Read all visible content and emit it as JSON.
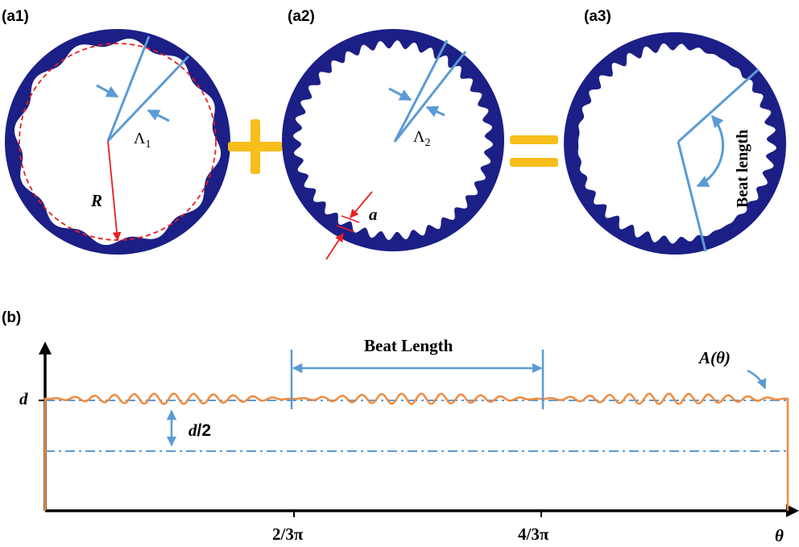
{
  "panels": {
    "a1": {
      "label": "(a1)",
      "period_symbol": "Λ",
      "period_subscript": "1",
      "radius_label": "R"
    },
    "a2": {
      "label": "(a2)",
      "period_symbol": "Λ",
      "period_subscript": "2",
      "amplitude_label": "a"
    },
    "a3": {
      "label": "(a3)",
      "beat_label": "Beat length"
    },
    "b": {
      "label": "(b)",
      "beat_label": "Beat Length",
      "curve_label": "A(θ)",
      "d_label": "d",
      "half_label_italic": "d",
      "half_label_rest": "/2",
      "x_ticks": [
        "2/3π",
        "4/3π"
      ],
      "x_axis_label": "θ"
    }
  },
  "operators": {
    "plus": "+",
    "equals": "="
  },
  "colors": {
    "ring": "#1c1f86",
    "light_blue": "#5b9bd5",
    "orange": "#f18a3f",
    "gold": "#f7be1c",
    "red": "#e81f1f",
    "axis": "#000000"
  }
}
